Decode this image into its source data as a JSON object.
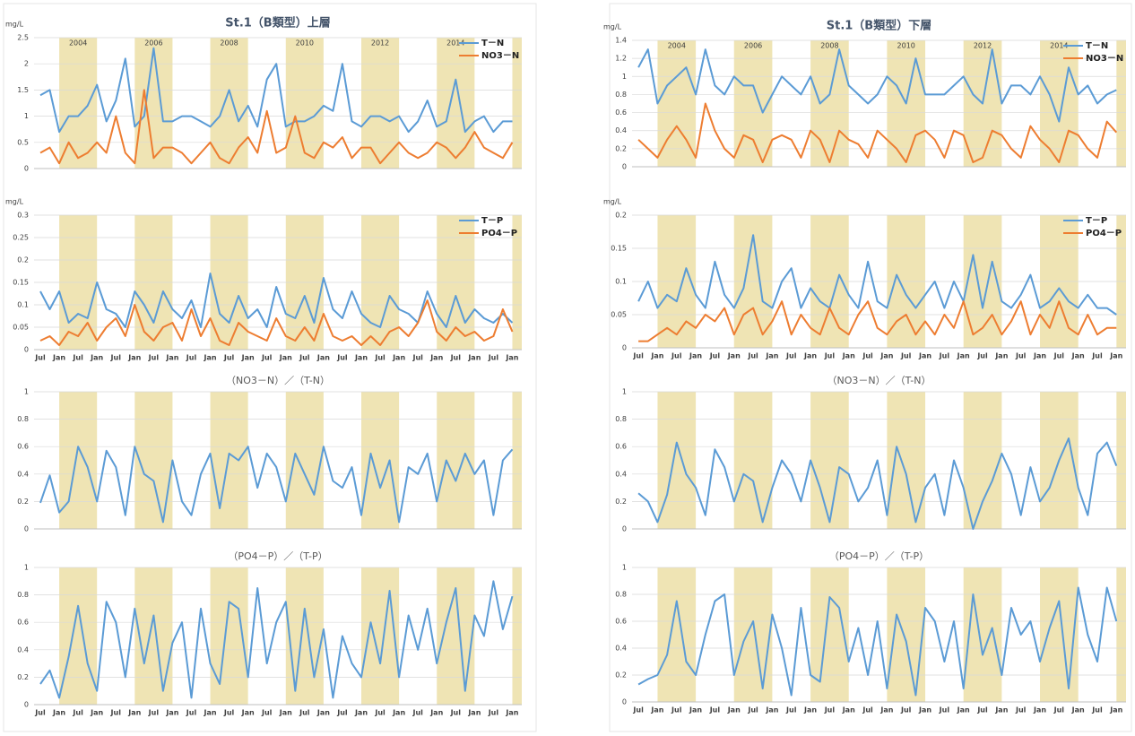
{
  "chart_data": [
    {
      "type": "line",
      "title": "St.1（B類型）上層",
      "y_unit": "mg/L",
      "ylim": [
        0,
        2.5
      ],
      "yticks": [
        0,
        0.5,
        1,
        1.5,
        2,
        2.5
      ],
      "grid": true,
      "legend": "upper right",
      "year_labels": [
        "2004",
        "2006",
        "2008",
        "2010",
        "2012",
        "2014"
      ],
      "series": [
        {
          "name": "T－N",
          "color": "#5b9bd5",
          "values": [
            1.4,
            1.5,
            0.7,
            1.0,
            1.0,
            1.2,
            1.6,
            0.9,
            1.3,
            2.1,
            0.8,
            1.0,
            2.3,
            0.9,
            0.9,
            1.0,
            1.0,
            0.9,
            0.8,
            1.0,
            1.5,
            0.9,
            1.2,
            0.8,
            1.7,
            2.0,
            0.8,
            0.9,
            0.9,
            1.0,
            1.2,
            1.1,
            2.0,
            0.9,
            0.8,
            1.0,
            1.0,
            0.9,
            1.0,
            0.7,
            0.9,
            1.3,
            0.8,
            0.9,
            1.7,
            0.7,
            0.9,
            1.0,
            0.7,
            0.9,
            0.9
          ]
        },
        {
          "name": "NO3－N",
          "color": "#ed7d31",
          "values": [
            0.3,
            0.4,
            0.1,
            0.5,
            0.2,
            0.3,
            0.5,
            0.3,
            1.0,
            0.3,
            0.1,
            1.5,
            0.2,
            0.4,
            0.4,
            0.3,
            0.1,
            0.3,
            0.5,
            0.2,
            0.1,
            0.4,
            0.6,
            0.3,
            1.1,
            0.3,
            0.4,
            1.0,
            0.3,
            0.2,
            0.5,
            0.4,
            0.6,
            0.2,
            0.4,
            0.4,
            0.1,
            0.3,
            0.5,
            0.3,
            0.2,
            0.3,
            0.5,
            0.4,
            0.2,
            0.4,
            0.7,
            0.4,
            0.3,
            0.2,
            0.5
          ]
        }
      ]
    },
    {
      "type": "line",
      "y_unit": "mg/L",
      "ylim": [
        0,
        0.3
      ],
      "yticks": [
        0,
        0.05,
        0.1,
        0.15,
        0.2,
        0.25,
        0.3
      ],
      "grid": true,
      "legend": "upper right",
      "xtick_labels": [
        "Jul",
        "Jan",
        "Jul",
        "Jan",
        "Jul",
        "Jan",
        "Jul",
        "Jan",
        "Jul",
        "Jan",
        "Jul",
        "Jan",
        "Jul",
        "Jan",
        "Jul",
        "Jan",
        "Jul",
        "Jan",
        "Jul",
        "Jan",
        "Jul",
        "Jan",
        "Jul",
        "Jan",
        "Jul",
        "Jan"
      ],
      "series": [
        {
          "name": "T－P",
          "color": "#5b9bd5",
          "values": [
            0.13,
            0.09,
            0.13,
            0.06,
            0.08,
            0.07,
            0.15,
            0.09,
            0.08,
            0.05,
            0.13,
            0.1,
            0.06,
            0.13,
            0.09,
            0.07,
            0.11,
            0.05,
            0.17,
            0.08,
            0.06,
            0.12,
            0.07,
            0.09,
            0.05,
            0.14,
            0.08,
            0.07,
            0.12,
            0.06,
            0.16,
            0.09,
            0.07,
            0.13,
            0.08,
            0.06,
            0.05,
            0.12,
            0.09,
            0.08,
            0.06,
            0.13,
            0.08,
            0.05,
            0.12,
            0.06,
            0.09,
            0.07,
            0.06,
            0.08,
            0.06
          ]
        },
        {
          "name": "PO4－P",
          "color": "#ed7d31",
          "values": [
            0.02,
            0.03,
            0.01,
            0.04,
            0.03,
            0.06,
            0.02,
            0.05,
            0.07,
            0.03,
            0.1,
            0.04,
            0.02,
            0.05,
            0.06,
            0.02,
            0.09,
            0.03,
            0.07,
            0.02,
            0.01,
            0.06,
            0.04,
            0.03,
            0.02,
            0.07,
            0.03,
            0.02,
            0.05,
            0.02,
            0.08,
            0.03,
            0.02,
            0.03,
            0.01,
            0.03,
            0.01,
            0.04,
            0.05,
            0.03,
            0.06,
            0.11,
            0.04,
            0.02,
            0.05,
            0.03,
            0.04,
            0.02,
            0.03,
            0.09,
            0.04
          ]
        }
      ]
    },
    {
      "type": "line",
      "title": "（NO3－N）／（T-N）",
      "ylim": [
        0,
        1
      ],
      "yticks": [
        0,
        0.2,
        0.4,
        0.6,
        0.8,
        1
      ],
      "grid": true,
      "series": [
        {
          "color": "#5b9bd5",
          "values": [
            0.19,
            0.39,
            0.12,
            0.2,
            0.6,
            0.45,
            0.2,
            0.57,
            0.45,
            0.1,
            0.6,
            0.4,
            0.35,
            0.05,
            0.5,
            0.2,
            0.1,
            0.4,
            0.55,
            0.15,
            0.55,
            0.5,
            0.6,
            0.3,
            0.55,
            0.45,
            0.2,
            0.55,
            0.4,
            0.25,
            0.6,
            0.35,
            0.3,
            0.45,
            0.1,
            0.55,
            0.3,
            0.5,
            0.05,
            0.45,
            0.4,
            0.55,
            0.2,
            0.5,
            0.35,
            0.55,
            0.4,
            0.5,
            0.1,
            0.5,
            0.58
          ]
        }
      ]
    },
    {
      "type": "line",
      "title": "（PO4－P）／（T-P）",
      "ylim": [
        0,
        1
      ],
      "yticks": [
        0,
        0.2,
        0.4,
        0.6,
        0.8,
        1
      ],
      "grid": true,
      "xtick_labels": [
        "Jul",
        "Jan",
        "Jul",
        "Jan",
        "Jul",
        "Jan",
        "Jul",
        "Jan",
        "Jul",
        "Jan",
        "Jul",
        "Jan",
        "Jul",
        "Jan",
        "Jul",
        "Jan",
        "Jul",
        "Jan",
        "Jul",
        "Jan",
        "Jul",
        "Jan",
        "Jul",
        "Jan",
        "Jul",
        "Jan"
      ],
      "series": [
        {
          "color": "#5b9bd5",
          "values": [
            0.15,
            0.25,
            0.05,
            0.35,
            0.72,
            0.3,
            0.1,
            0.75,
            0.6,
            0.2,
            0.7,
            0.3,
            0.65,
            0.1,
            0.45,
            0.6,
            0.05,
            0.7,
            0.3,
            0.15,
            0.75,
            0.7,
            0.2,
            0.85,
            0.3,
            0.6,
            0.75,
            0.1,
            0.7,
            0.2,
            0.55,
            0.05,
            0.5,
            0.3,
            0.2,
            0.6,
            0.3,
            0.83,
            0.2,
            0.65,
            0.4,
            0.7,
            0.3,
            0.6,
            0.85,
            0.1,
            0.65,
            0.5,
            0.9,
            0.55,
            0.79
          ]
        }
      ]
    },
    {
      "type": "line",
      "title": "St.1（B類型）下層",
      "y_unit": "mg/L",
      "ylim": [
        0,
        1.4
      ],
      "yticks": [
        0,
        0.2,
        0.4,
        0.6,
        0.8,
        1,
        1.2,
        1.4
      ],
      "grid": true,
      "legend": "upper right",
      "year_labels": [
        "2004",
        "2006",
        "2008",
        "2010",
        "2012",
        "2014"
      ],
      "series": [
        {
          "name": "T－N",
          "color": "#5b9bd5",
          "values": [
            1.1,
            1.3,
            0.7,
            0.9,
            1.0,
            1.1,
            0.8,
            1.3,
            0.9,
            0.8,
            1.0,
            0.9,
            0.9,
            0.6,
            0.8,
            1.0,
            0.9,
            0.8,
            1.0,
            0.7,
            0.8,
            1.3,
            0.9,
            0.8,
            0.7,
            0.8,
            1.0,
            0.9,
            0.7,
            1.2,
            0.8,
            0.8,
            0.8,
            0.9,
            1.0,
            0.8,
            0.7,
            1.3,
            0.7,
            0.9,
            0.9,
            0.8,
            1.0,
            0.8,
            0.5,
            1.1,
            0.8,
            0.9,
            0.7,
            0.8,
            0.85
          ]
        },
        {
          "name": "NO3－N",
          "color": "#ed7d31",
          "values": [
            0.3,
            0.2,
            0.1,
            0.3,
            0.45,
            0.3,
            0.1,
            0.7,
            0.4,
            0.2,
            0.1,
            0.35,
            0.3,
            0.05,
            0.3,
            0.35,
            0.3,
            0.1,
            0.4,
            0.3,
            0.05,
            0.4,
            0.3,
            0.25,
            0.1,
            0.4,
            0.3,
            0.2,
            0.05,
            0.35,
            0.4,
            0.3,
            0.1,
            0.4,
            0.35,
            0.05,
            0.1,
            0.4,
            0.35,
            0.2,
            0.1,
            0.45,
            0.3,
            0.2,
            0.05,
            0.4,
            0.35,
            0.2,
            0.1,
            0.5,
            0.38
          ]
        }
      ]
    },
    {
      "type": "line",
      "y_unit": "mg/L",
      "ylim": [
        0,
        0.2
      ],
      "yticks": [
        0,
        0.05,
        0.1,
        0.15,
        0.2
      ],
      "grid": true,
      "legend": "upper right",
      "xtick_labels": [
        "Jul",
        "Jan",
        "Jul",
        "Jan",
        "Jul",
        "Jan",
        "Jul",
        "Jan",
        "Jul",
        "Jan",
        "Jul",
        "Jan",
        "Jul",
        "Jan",
        "Jul",
        "Jan",
        "Jul",
        "Jan",
        "Jul",
        "Jan",
        "Jul",
        "Jan",
        "Jul",
        "Jan",
        "Jul",
        "Jan"
      ],
      "series": [
        {
          "name": "T－P",
          "color": "#5b9bd5",
          "values": [
            0.07,
            0.1,
            0.06,
            0.08,
            0.07,
            0.12,
            0.08,
            0.06,
            0.13,
            0.08,
            0.06,
            0.09,
            0.17,
            0.07,
            0.06,
            0.1,
            0.12,
            0.06,
            0.09,
            0.07,
            0.06,
            0.11,
            0.08,
            0.06,
            0.13,
            0.07,
            0.06,
            0.11,
            0.08,
            0.06,
            0.08,
            0.1,
            0.06,
            0.1,
            0.07,
            0.14,
            0.06,
            0.13,
            0.07,
            0.06,
            0.08,
            0.11,
            0.06,
            0.07,
            0.09,
            0.07,
            0.06,
            0.08,
            0.06,
            0.06,
            0.05
          ]
        },
        {
          "name": "PO4－P",
          "color": "#ed7d31",
          "values": [
            0.01,
            0.01,
            0.02,
            0.03,
            0.02,
            0.04,
            0.03,
            0.05,
            0.04,
            0.06,
            0.02,
            0.05,
            0.06,
            0.02,
            0.04,
            0.07,
            0.02,
            0.05,
            0.03,
            0.02,
            0.06,
            0.03,
            0.02,
            0.05,
            0.07,
            0.03,
            0.02,
            0.04,
            0.05,
            0.02,
            0.04,
            0.02,
            0.05,
            0.03,
            0.07,
            0.02,
            0.03,
            0.05,
            0.02,
            0.04,
            0.07,
            0.02,
            0.05,
            0.03,
            0.07,
            0.03,
            0.02,
            0.05,
            0.02,
            0.03,
            0.03
          ]
        }
      ]
    },
    {
      "type": "line",
      "title": "（NO3－N）／（T-N）",
      "ylim": [
        0,
        1
      ],
      "yticks": [
        0,
        0.2,
        0.4,
        0.6,
        0.8,
        1
      ],
      "grid": true,
      "series": [
        {
          "color": "#5b9bd5",
          "values": [
            0.26,
            0.2,
            0.05,
            0.25,
            0.63,
            0.4,
            0.3,
            0.1,
            0.58,
            0.45,
            0.2,
            0.4,
            0.35,
            0.05,
            0.3,
            0.5,
            0.4,
            0.2,
            0.5,
            0.3,
            0.05,
            0.45,
            0.4,
            0.2,
            0.3,
            0.5,
            0.1,
            0.6,
            0.4,
            0.05,
            0.3,
            0.4,
            0.1,
            0.5,
            0.3,
            0,
            0.2,
            0.35,
            0.55,
            0.4,
            0.1,
            0.45,
            0.2,
            0.3,
            0.5,
            0.66,
            0.3,
            0.1,
            0.55,
            0.63,
            0.46
          ]
        }
      ]
    },
    {
      "type": "line",
      "title": "（PO4－P）／（T-P）",
      "ylim": [
        0,
        1
      ],
      "yticks": [
        0,
        0.2,
        0.4,
        0.6,
        0.8,
        1
      ],
      "grid": true,
      "xtick_labels": [
        "Jul",
        "Jan",
        "Jul",
        "Jan",
        "Jul",
        "Jan",
        "Jul",
        "Jan",
        "Jul",
        "Jan",
        "Jul",
        "Jan",
        "Jul",
        "Jan",
        "Jul",
        "Jan",
        "Jul",
        "Jan",
        "Jul",
        "Jan",
        "Jul",
        "Jan",
        "Jul",
        "Jan",
        "Jul",
        "Jan"
      ],
      "series": [
        {
          "color": "#5b9bd5",
          "values": [
            0.13,
            0.17,
            0.2,
            0.35,
            0.75,
            0.3,
            0.2,
            0.5,
            0.75,
            0.8,
            0.2,
            0.45,
            0.6,
            0.1,
            0.65,
            0.4,
            0.05,
            0.7,
            0.2,
            0.15,
            0.78,
            0.7,
            0.3,
            0.55,
            0.2,
            0.6,
            0.1,
            0.65,
            0.45,
            0.05,
            0.7,
            0.6,
            0.3,
            0.6,
            0.1,
            0.8,
            0.35,
            0.55,
            0.2,
            0.7,
            0.5,
            0.6,
            0.3,
            0.55,
            0.75,
            0.1,
            0.85,
            0.5,
            0.3,
            0.85,
            0.6
          ]
        }
      ]
    }
  ]
}
